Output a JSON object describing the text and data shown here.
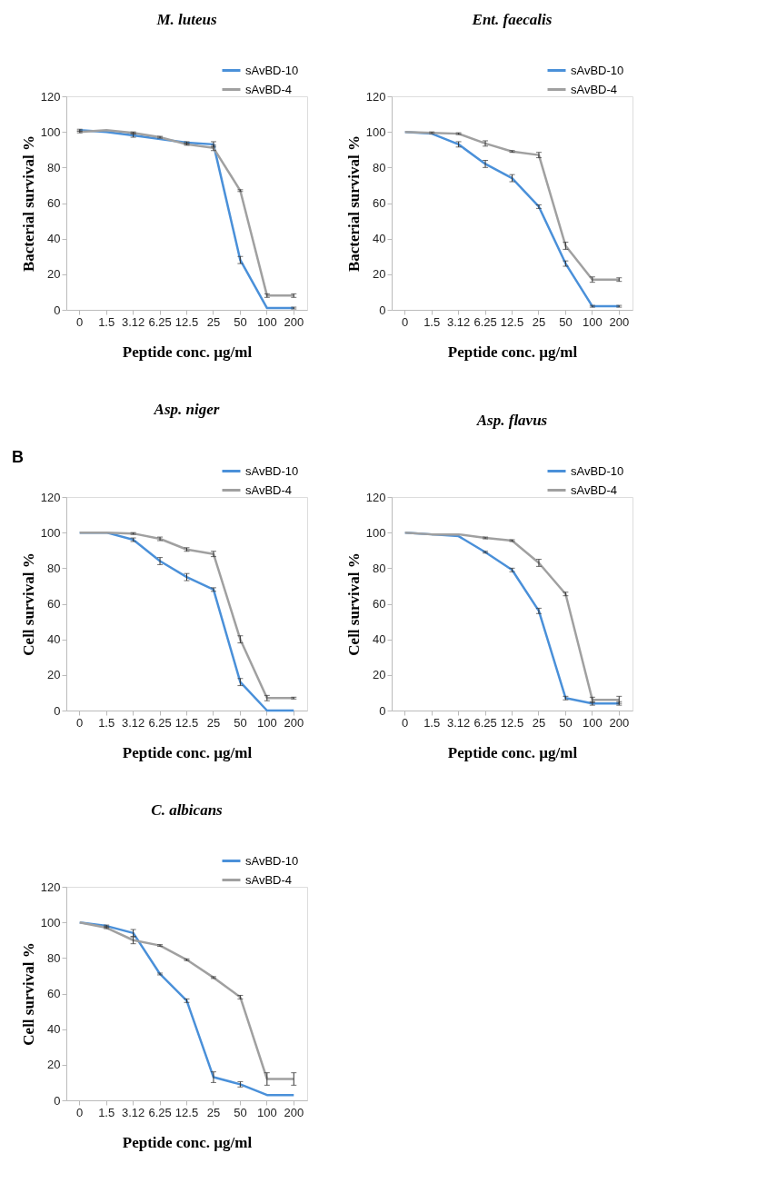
{
  "chart_data": [
    {
      "type": "line",
      "title": "M. luteus",
      "xlabel": "Peptide conc.  µg/ml",
      "ylabel": "Bacterial  survival %",
      "categories": [
        "0",
        "1.5",
        "3.12",
        "6.25",
        "12.5",
        "25",
        "50",
        "100",
        "200"
      ],
      "ylim": [
        0,
        120
      ],
      "yticks": [
        0,
        20,
        40,
        60,
        80,
        100,
        120
      ],
      "grid": false,
      "legend": "top right",
      "marker": "none",
      "line_style": "solid",
      "series": [
        {
          "name": "sAvBD-10",
          "color": "#4a90d9",
          "values": [
            101,
            100,
            98,
            96,
            94,
            93,
            28,
            1,
            1
          ],
          "errors": [
            0.5,
            null,
            1,
            null,
            0.5,
            1.5,
            2,
            null,
            0.5
          ]
        },
        {
          "name": "sAvBD-4",
          "color": "#a0a0a0",
          "values": [
            100,
            101,
            99.5,
            97,
            93,
            91,
            67,
            8,
            8
          ],
          "errors": [
            0.5,
            null,
            0.5,
            0.5,
            0.5,
            1.5,
            0.5,
            1,
            1
          ]
        }
      ]
    },
    {
      "type": "line",
      "title": "Ent.  faecalis",
      "xlabel": "Peptide conc.  µg/ml",
      "ylabel": "Bacterial   survival %",
      "categories": [
        "0",
        "1.5",
        "3.12",
        "6.25",
        "12.5",
        "25",
        "50",
        "100",
        "200"
      ],
      "ylim": [
        0,
        120
      ],
      "yticks": [
        0,
        20,
        40,
        60,
        80,
        100,
        120
      ],
      "grid": false,
      "legend": "top right",
      "marker": "none",
      "line_style": "solid",
      "series": [
        {
          "name": "sAvBD-10",
          "color": "#4a90d9",
          "values": [
            100,
            99,
            93,
            82,
            74,
            58,
            26,
            2,
            2
          ],
          "errors": [
            null,
            null,
            1.5,
            2,
            2,
            1,
            1.5,
            0.5,
            0.5
          ]
        },
        {
          "name": "sAvBD-4",
          "color": "#a0a0a0",
          "values": [
            100,
            99.5,
            99,
            93.5,
            89,
            87,
            36,
            17,
            17
          ],
          "errors": [
            null,
            0.5,
            0.5,
            1.5,
            0.5,
            1.5,
            2,
            1.5,
            1
          ]
        }
      ]
    },
    {
      "type": "line",
      "title": "Asp.  niger",
      "xlabel": "Peptide conc.  µg/ml",
      "ylabel": "Cell survival %",
      "annotations": [
        "B"
      ],
      "categories": [
        "0",
        "1.5",
        "3.12",
        "6.25",
        "12.5",
        "25",
        "50",
        "100",
        "200"
      ],
      "ylim": [
        0,
        120
      ],
      "yticks": [
        0,
        20,
        40,
        60,
        80,
        100,
        120
      ],
      "grid": false,
      "legend": "top right",
      "marker": "none",
      "line_style": "solid",
      "series": [
        {
          "name": "sAvBD-10",
          "color": "#4a90d9",
          "values": [
            100,
            100,
            96,
            84,
            75,
            68,
            16,
            0,
            0
          ],
          "errors": [
            0,
            0,
            1,
            2,
            2,
            1,
            2,
            0,
            0
          ]
        },
        {
          "name": "sAvBD-4",
          "color": "#a0a0a0",
          "values": [
            100,
            100,
            99.5,
            96.5,
            90.5,
            88,
            40,
            7,
            7
          ],
          "errors": [
            0,
            0,
            0.5,
            1,
            1,
            1.5,
            2,
            1.5,
            0.5
          ]
        }
      ]
    },
    {
      "type": "line",
      "title": "Asp.  flavus",
      "xlabel": "Peptide conc. µg/ml",
      "ylabel": "Cell survival %",
      "categories": [
        "0",
        "1.5",
        "3.12",
        "6.25",
        "12.5",
        "25",
        "50",
        "100",
        "200"
      ],
      "ylim": [
        0,
        120
      ],
      "yticks": [
        0,
        20,
        40,
        60,
        80,
        100,
        120
      ],
      "grid": false,
      "legend": "top right",
      "marker": "none",
      "line_style": "solid",
      "series": [
        {
          "name": "sAvBD-10",
          "color": "#4a90d9",
          "values": [
            100,
            99,
            98,
            89,
            79,
            56,
            7,
            4,
            4
          ],
          "errors": [
            0,
            0,
            null,
            0.5,
            1,
            1.5,
            1,
            1,
            1
          ]
        },
        {
          "name": "sAvBD-4",
          "color": "#a0a0a0",
          "values": [
            100,
            99,
            99,
            97,
            95.5,
            83,
            65.5,
            6,
            6
          ],
          "errors": [
            0,
            0,
            null,
            0.5,
            0.5,
            2,
            1,
            1.5,
            2
          ]
        }
      ]
    },
    {
      "type": "line",
      "title": "C. albicans",
      "xlabel": "Peptide conc. µg/ml",
      "ylabel": "Cell  survival %",
      "categories": [
        "0",
        "1.5",
        "3.12",
        "6.25",
        "12.5",
        "25",
        "50",
        "100",
        "200"
      ],
      "ylim": [
        0,
        120
      ],
      "yticks": [
        0,
        20,
        40,
        60,
        80,
        100,
        120
      ],
      "grid": false,
      "legend": "top right",
      "marker": "none",
      "line_style": "solid",
      "series": [
        {
          "name": "sAvBD-10",
          "color": "#4a90d9",
          "values": [
            100,
            98,
            94,
            71,
            56,
            13,
            9,
            3,
            3
          ],
          "errors": [
            0,
            0.5,
            2,
            0.5,
            1,
            3,
            1.5,
            0,
            0
          ]
        },
        {
          "name": "sAvBD-4",
          "color": "#a0a0a0",
          "values": [
            100,
            97,
            90,
            87,
            79,
            69,
            58,
            12,
            12
          ],
          "errors": [
            0,
            0.5,
            2,
            0.5,
            0.5,
            0.5,
            1,
            3.5,
            3.5
          ]
        }
      ]
    }
  ]
}
